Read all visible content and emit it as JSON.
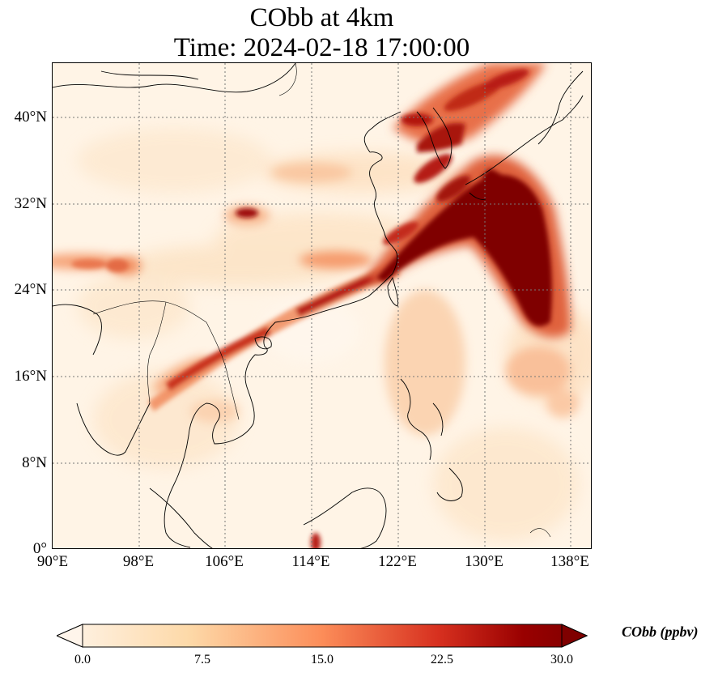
{
  "title": {
    "line1": "CObb at 4km",
    "line2": "Time: 2024-02-18 17:00:00"
  },
  "axes": {
    "x_ticks": [
      "90°E",
      "98°E",
      "106°E",
      "114°E",
      "122°E",
      "130°E",
      "138°E"
    ],
    "y_ticks": [
      "40°N",
      "32°N",
      "24°N",
      "16°N",
      "8°N",
      "0°"
    ]
  },
  "colorbar": {
    "label": "CObb (ppbv)",
    "ticks": [
      "0.0",
      "7.5",
      "15.0",
      "22.5",
      "30.0"
    ],
    "colormap": [
      "#fff5eb",
      "#fdd9a8",
      "#fc8d59",
      "#d7301f",
      "#990000",
      "#7f0000"
    ]
  },
  "colors": {
    "background_field": "#fff4e6",
    "low": "#fde5c8",
    "medium": "#f4956a",
    "high": "#c4281c",
    "max": "#7f0000",
    "gridline": "#777777",
    "coastline": "#000000"
  }
}
